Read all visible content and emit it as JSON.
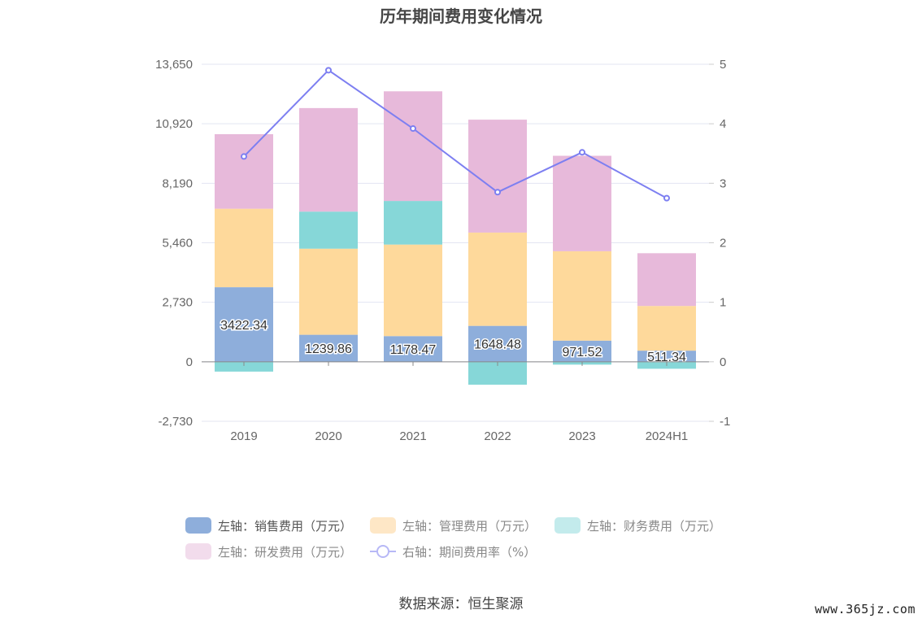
{
  "chart_data": {
    "type": "bar",
    "title": "历年期间费用变化情况",
    "categories": [
      "2019",
      "2020",
      "2021",
      "2022",
      "2023",
      "2024H1"
    ],
    "y_left": {
      "ticks": [
        "13,650",
        "10,920",
        "8,190",
        "5,460",
        "2,730",
        "0",
        "-2,730"
      ],
      "ylim": [
        -2730,
        13650
      ]
    },
    "y_right": {
      "ticks": [
        "5",
        "4",
        "3",
        "2",
        "1",
        "0",
        "-1"
      ],
      "ylim": [
        -1,
        5
      ]
    },
    "series": [
      {
        "name": "左轴：销售费用（万元）",
        "axis": "left",
        "stack": true,
        "color": "#8eaedb",
        "values": [
          3422.34,
          1239.86,
          1178.47,
          1648.48,
          971.52,
          511.34
        ],
        "labels": [
          "3422.34",
          "1239.86",
          "1178.47",
          "1648.48",
          "971.52",
          "511.34"
        ]
      },
      {
        "name": "左轴：管理费用（万元）",
        "axis": "left",
        "stack": true,
        "color": "#fed99b",
        "values": [
          3600,
          3950,
          4200,
          4280,
          4100,
          2050
        ]
      },
      {
        "name": "左轴：财务费用（万元）",
        "axis": "left",
        "stack": true,
        "color": "#86d7d8",
        "values": [
          -450,
          1700,
          2000,
          -1050,
          -130,
          -320
        ]
      },
      {
        "name": "左轴：研发费用（万元）",
        "axis": "left",
        "stack": true,
        "color": "#e7b9da",
        "values": [
          3420,
          4750,
          5030,
          5180,
          4380,
          2420
        ]
      },
      {
        "name": "右轴：期间费用率（%）",
        "axis": "right",
        "type": "line",
        "color": "#7d7ff1",
        "values": [
          3.45,
          4.9,
          3.92,
          2.85,
          3.52,
          2.75
        ]
      }
    ],
    "grid": true,
    "legend_position": "bottom"
  },
  "source_text": "数据来源：恒生聚源",
  "watermark": "www.365jz.com"
}
